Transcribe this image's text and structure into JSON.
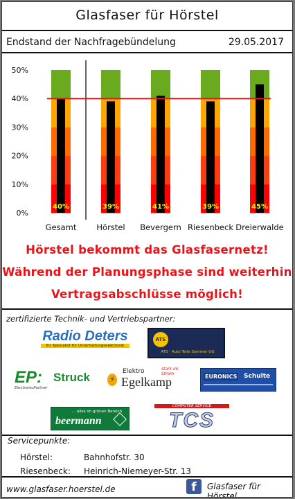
{
  "header": {
    "title": "Glasfaser für Hörstel"
  },
  "chart_data": {
    "type": "bar",
    "title": "Endstand der Nachfragebündelung",
    "date": "29.05.2017",
    "categories": [
      "Gesamt",
      "Hörstel",
      "Bevergern",
      "Riesenbeck",
      "Dreierwalde"
    ],
    "values": [
      40,
      39,
      41,
      39,
      45
    ],
    "value_labels": [
      "40%",
      "39%",
      "41%",
      "39%",
      "45%"
    ],
    "target": 40,
    "ylim": [
      0,
      50
    ],
    "yticks": [
      "0%",
      "10%",
      "20%",
      "30%",
      "40%",
      "50%"
    ],
    "band_colors": [
      "#ff0000",
      "#ff3b10",
      "#ff6a00",
      "#ffa500",
      "#6aaa1e"
    ],
    "bar_color": "#000000",
    "target_color": "#e8141a",
    "label_color": "#ffee00",
    "grid": false
  },
  "headlines": [
    "Hörstel bekommt das Glasfasernetz!",
    "Während der Planungsphase sind weiterhin",
    "Vertragsabschlüsse möglich!"
  ],
  "partners": {
    "label": "zertifizierte Technik- und Vertriebspartner:",
    "radio_deters": {
      "name": "Radio Deters",
      "tagline": "Ihr Spezialist für Unterhaltungselektronik"
    },
    "ats": {
      "name": "ATS",
      "tagline": "ATS · Auto Teile Sommer UG"
    },
    "ep_struck": {
      "brand": "EP:",
      "name": "Struck",
      "sub": "ElectronicPartner"
    },
    "egelkamp": {
      "top": "Elektro",
      "name": "Egelkamp",
      "note": "stark im Strom"
    },
    "euronics": {
      "brand": "EURONICS",
      "name": "Schulte"
    },
    "beermann": {
      "name": "beermann",
      "tagline": "... alles im grünen Bereich"
    },
    "tcs": {
      "name": "TCS",
      "tagline": "COMPUTER SERVICE"
    }
  },
  "service": {
    "label": "Servicepunkte:",
    "points": [
      {
        "place": "Hörstel:",
        "address": "Bahnhofstr. 30"
      },
      {
        "place": "Riesenbeck:",
        "address": "Heinrich-Niemeyer-Str. 13"
      }
    ]
  },
  "footer": {
    "website": "www.glasfaser.hoerstel.de",
    "facebook": "Glasfaser für Hörstel",
    "fb_icon": "facebook-icon"
  }
}
